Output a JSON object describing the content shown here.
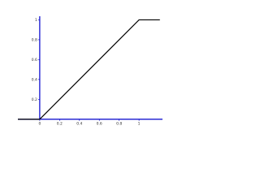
{
  "chart_data": {
    "type": "line",
    "x": [
      -0.22,
      0,
      1,
      1.21
    ],
    "series": [
      {
        "color": "#000000",
        "values": [
          0,
          0,
          1,
          1
        ]
      }
    ],
    "axis_color": "#0000cc",
    "xlim": [
      -0.4,
      1.4
    ],
    "ylim": [
      -0.1,
      1.2
    ],
    "xticks": [
      0,
      0.2,
      0.4,
      0.6,
      0.8,
      1
    ],
    "yticks": [
      0.2,
      0.4,
      0.6,
      0.8,
      1
    ]
  }
}
